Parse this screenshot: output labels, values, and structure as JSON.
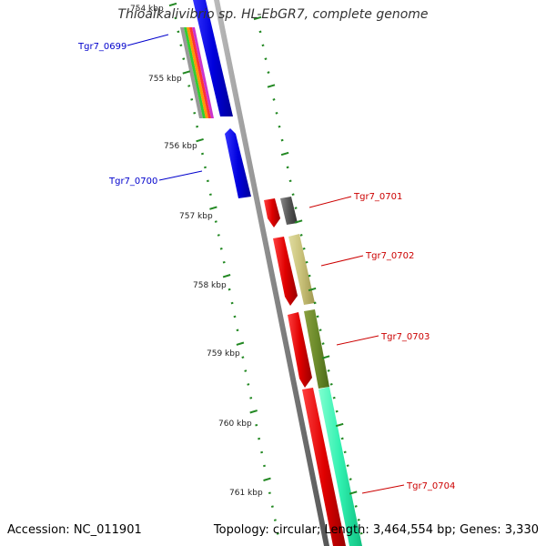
{
  "title": "Thioalkalivibrio sp. HL-EbGR7, complete genome",
  "footer": {
    "accession": "Accession: NC_011901",
    "summary": "Topology: circular; Length: 3,464,554 bp; Genes: 3,330"
  },
  "ticks": [
    "754 kbp",
    "755 kbp",
    "756 kbp",
    "757 kbp",
    "758 kbp",
    "759 kbp",
    "760 kbp",
    "761 kbp"
  ],
  "genes": [
    {
      "label": "Tgr7_0699",
      "color": "#0000cc"
    },
    {
      "label": "Tgr7_0700",
      "color": "#0000cc"
    },
    {
      "label": "Tgr7_0701",
      "color": "#cc0000"
    },
    {
      "label": "Tgr7_0702",
      "color": "#cc0000"
    },
    {
      "label": "Tgr7_0703",
      "color": "#cc0000"
    },
    {
      "label": "Tgr7_0704",
      "color": "#cc0000"
    }
  ]
}
